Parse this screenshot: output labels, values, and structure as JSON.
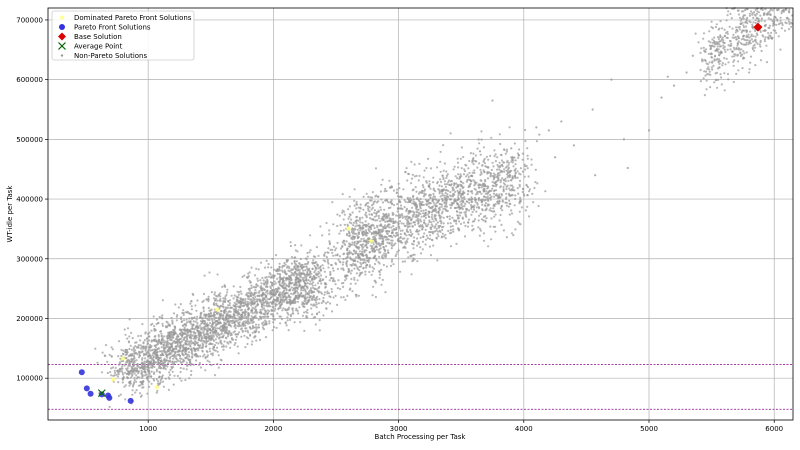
{
  "chart_data": {
    "type": "scatter",
    "xlabel": "Batch Processing per Task",
    "ylabel": "WT-idle per Task",
    "xlim": [
      200,
      6150
    ],
    "ylim": [
      30000,
      720000
    ],
    "xticks": [
      1000,
      2000,
      3000,
      4000,
      5000,
      6000
    ],
    "yticks": [
      100000,
      200000,
      300000,
      400000,
      500000,
      600000,
      700000
    ],
    "grid": true,
    "legend_position": "top-left",
    "legend": [
      {
        "label": "Dominated Pareto Front Solutions",
        "marker": "star",
        "color": "#ffff80"
      },
      {
        "label": "Pareto Front Solutions",
        "marker": "circle",
        "color": "#3333dd"
      },
      {
        "label": "Base Solution",
        "marker": "diamond",
        "color": "#dd0000"
      },
      {
        "label": "Average Point",
        "marker": "x",
        "color": "#006600"
      },
      {
        "label": "Non-Pareto Solutions",
        "marker": "point",
        "color": "#999999"
      }
    ],
    "reference_lines": [
      {
        "axis": "y",
        "value": 123000,
        "color": "#8b008b",
        "style": "dashed"
      },
      {
        "axis": "y",
        "value": 48000,
        "color": "#8b008b",
        "style": "dashed"
      }
    ],
    "series": [
      {
        "name": "Non-Pareto Solutions",
        "kind": "point-cloud",
        "color": "#999999",
        "clusters": [
          {
            "from": [
              800,
              110000
            ],
            "to": [
              2300,
              270000
            ],
            "count": 2600,
            "spread_y": 24000
          },
          {
            "from": [
              2600,
              330000
            ],
            "to": [
              4000,
              440000
            ],
            "count": 1700,
            "spread_y": 33000
          },
          {
            "from": [
              2200,
              240000
            ],
            "to": [
              2900,
              340000
            ],
            "count": 400,
            "spread_y": 32000
          },
          {
            "from": [
              5450,
              630000
            ],
            "to": [
              6150,
              730000
            ],
            "count": 550,
            "spread_y": 28000
          }
        ],
        "scattered_points": [
          [
            4100,
            520000
          ],
          [
            4300,
            530000
          ],
          [
            4550,
            550000
          ],
          [
            4570,
            440000
          ],
          [
            4800,
            500000
          ],
          [
            4830,
            452000
          ],
          [
            5000,
            515000
          ],
          [
            5150,
            605000
          ],
          [
            5100,
            570000
          ],
          [
            5300,
            612000
          ],
          [
            4200,
            515000
          ],
          [
            4400,
            490000
          ],
          [
            3900,
            485000
          ],
          [
            3750,
            565000
          ],
          [
            4700,
            600000
          ],
          [
            4250,
            470000
          ],
          [
            3650,
            480000
          ],
          [
            5200,
            590000
          ],
          [
            5350,
            640000
          ],
          [
            1850,
            185000
          ]
        ]
      },
      {
        "name": "Dominated Pareto Front Solutions",
        "color": "#ffff80",
        "points": [
          [
            2600,
            350000
          ],
          [
            2780,
            330000
          ],
          [
            1070,
            85000
          ],
          [
            800,
            133000
          ],
          [
            720,
            98000
          ],
          [
            1550,
            215000
          ]
        ]
      },
      {
        "name": "Pareto Front Solutions",
        "color": "#3333dd",
        "points": [
          [
            470,
            110000
          ],
          [
            510,
            83000
          ],
          [
            540,
            74000
          ],
          [
            630,
            73000
          ],
          [
            680,
            71000
          ],
          [
            690,
            67000
          ],
          [
            860,
            62000
          ]
        ]
      },
      {
        "name": "Base Solution",
        "color": "#dd0000",
        "points": [
          [
            5870,
            688000
          ]
        ]
      },
      {
        "name": "Average Point",
        "color": "#006600",
        "points": [
          [
            630,
            75000
          ]
        ]
      }
    ]
  }
}
